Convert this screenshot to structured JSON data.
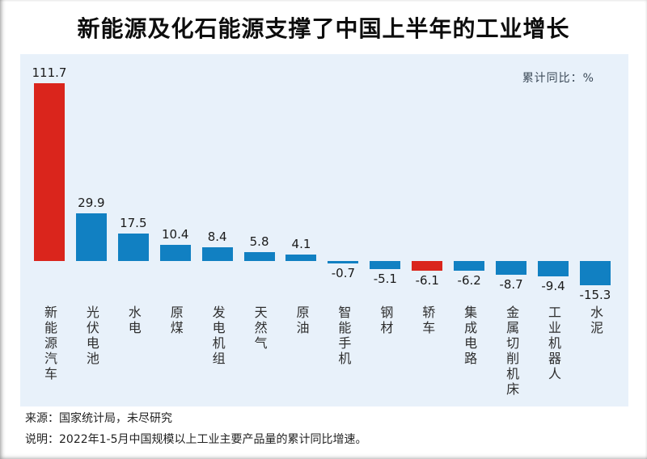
{
  "title": "新能源及化石能源支撑了中国上半年的工业增长",
  "chart_data": {
    "type": "bar",
    "title": "新能源及化石能源支撑了中国上半年的工业增长",
    "unit_label": "累计同比：%",
    "categories": [
      "新能源汽车",
      "光伏电池",
      "水电",
      "原煤",
      "发电机组",
      "天然气",
      "原油",
      "智能手机",
      "钢材",
      "轿车",
      "集成电路",
      "金属切削机床",
      "工业机器人",
      "水泥"
    ],
    "values": [
      111.7,
      29.9,
      17.5,
      10.4,
      8.4,
      5.8,
      4.1,
      -0.7,
      -5.1,
      -6.1,
      -6.2,
      -8.7,
      -9.4,
      -15.3
    ],
    "bar_colors": [
      "#da251c",
      "#1180c2",
      "#1180c2",
      "#1180c2",
      "#1180c2",
      "#1180c2",
      "#1180c2",
      "#1180c2",
      "#1180c2",
      "#da251c",
      "#1180c2",
      "#1180c2",
      "#1180c2",
      "#1180c2"
    ],
    "value_labels": true,
    "grid": false,
    "legend_position": "top-right",
    "ylim": [
      -20,
      120
    ],
    "baseline": 0
  },
  "footer": {
    "source": "来源：国家统计局，未尽研究",
    "note": "说明：2022年1-5月中国规模以上工业主要产品量的累计同比增速。"
  },
  "colors": {
    "bar_blue": "#1180c2",
    "bar_red": "#da251c",
    "panel_background": "#e8f1fa",
    "page_background": "#ffffff"
  }
}
